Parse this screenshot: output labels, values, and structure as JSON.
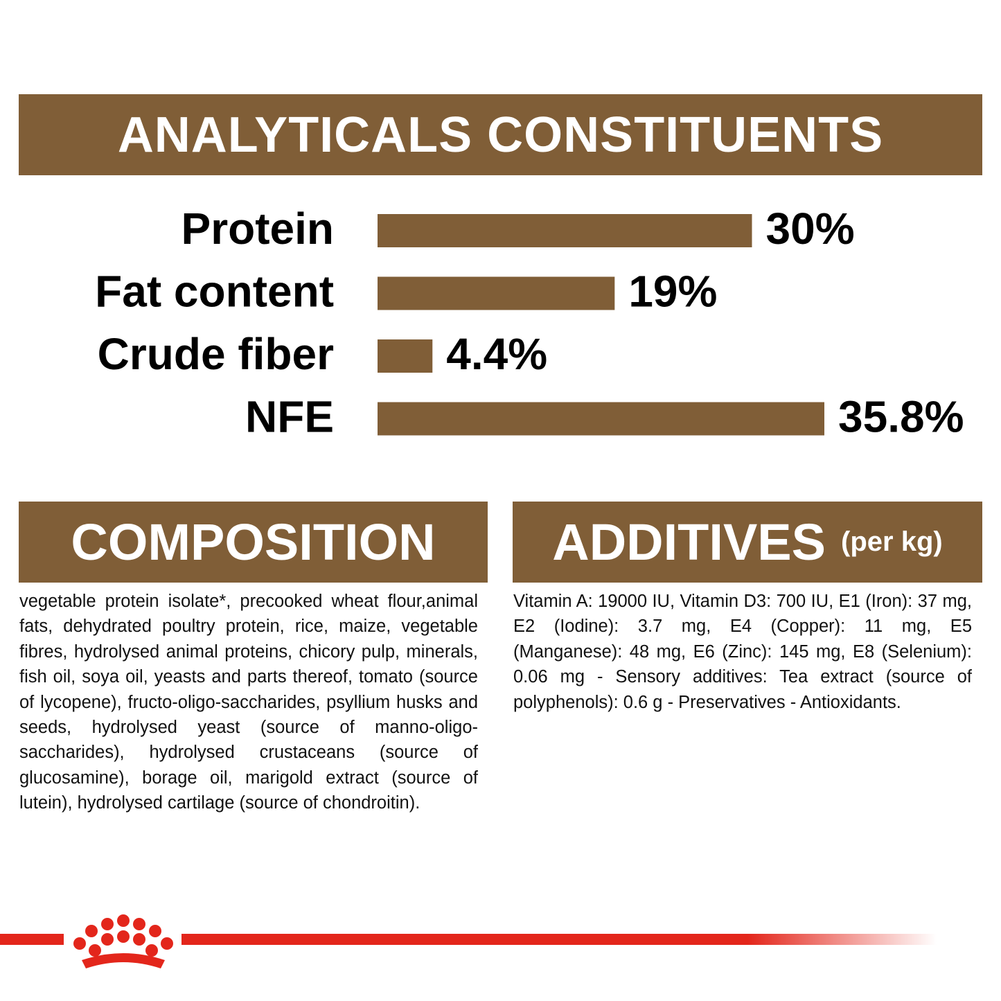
{
  "chart_data": {
    "type": "bar",
    "orientation": "horizontal",
    "title": "ANALYTICALS CONSTITUENTS",
    "categories": [
      "Protein",
      "Fat content",
      "Crude fiber",
      "NFE"
    ],
    "values": [
      30,
      19,
      4.4,
      35.8
    ],
    "value_labels": [
      "30%",
      "19%",
      "4.4%",
      "35.8%"
    ],
    "color": "#805e37"
  },
  "composition": {
    "heading": "COMPOSITION",
    "text": "vegetable protein isolate*, precooked wheat flour,animal fats, dehydrated poultry protein, rice, maize, vegetable fibres, hydrolysed animal proteins, chicory pulp, minerals, fish oil, soya oil, yeasts and parts thereof, tomato (source of lycopene), fructo-oligo-saccharides, psyllium husks and seeds, hydrolysed yeast (source of manno-oligo-saccharides), hydrolysed crustaceans (source of glucosamine), borage oil, marigold extract (source of lutein), hydrolysed cartilage (source of chondroitin)."
  },
  "additives": {
    "heading": "ADDITIVES",
    "unit": "(per kg)",
    "text": "Vitamin A: 19000 IU, Vitamin D3: 700 IU, E1 (Iron): 37 mg, E2 (Iodine): 3.7 mg, E4 (Copper): 11 mg, E5 (Manganese): 48 mg, E6 (Zinc): 145 mg, E8 (Selenium): 0.06 mg - Sensory additives: Tea extract (source of polyphenols): 0.6 g - Preservatives - Antioxidants."
  }
}
